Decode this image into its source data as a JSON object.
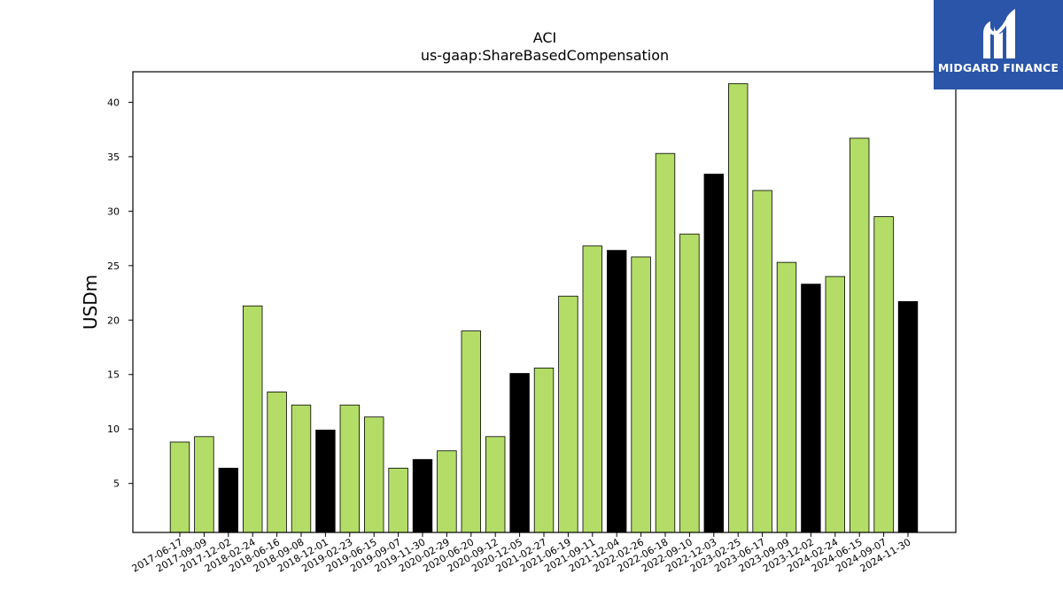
{
  "chart_data": {
    "type": "bar",
    "title": "ACI",
    "subtitle": "us-gaap:ShareBasedCompensation",
    "xlabel": "",
    "ylabel": "USDm",
    "ylim": [
      0.5,
      42.8
    ],
    "yticks": [
      5,
      10,
      15,
      20,
      25,
      30,
      35,
      40
    ],
    "grid": false,
    "colors": {
      "regular": "#b3dd67",
      "highlight": "#000000",
      "edge": "#000000"
    },
    "categories": [
      "2017-06-17",
      "2017-09-09",
      "2017-12-02",
      "2018-02-24",
      "2018-06-16",
      "2018-09-08",
      "2018-12-01",
      "2019-02-23",
      "2019-06-15",
      "2019-09-07",
      "2019-11-30",
      "2020-02-29",
      "2020-06-20",
      "2020-09-12",
      "2020-12-05",
      "2021-02-27",
      "2021-06-19",
      "2021-09-11",
      "2021-12-04",
      "2022-02-26",
      "2022-06-18",
      "2022-09-10",
      "2022-12-03",
      "2023-02-25",
      "2023-06-17",
      "2023-09-09",
      "2023-12-02",
      "2024-02-24",
      "2024-06-15",
      "2024-09-07",
      "2024-11-30"
    ],
    "values": [
      8.8,
      9.3,
      6.4,
      21.3,
      13.4,
      12.2,
      9.9,
      12.2,
      11.1,
      6.4,
      7.2,
      8.0,
      19.0,
      9.3,
      15.1,
      15.6,
      22.2,
      26.8,
      26.4,
      25.8,
      35.3,
      27.9,
      33.4,
      41.7,
      31.9,
      25.3,
      23.3,
      24.0,
      36.7,
      29.5,
      21.7
    ],
    "highlighted": [
      false,
      false,
      true,
      false,
      false,
      false,
      true,
      false,
      false,
      false,
      true,
      false,
      false,
      false,
      true,
      false,
      false,
      false,
      true,
      false,
      false,
      false,
      true,
      false,
      false,
      false,
      true,
      false,
      false,
      false,
      true
    ]
  },
  "logo": {
    "text": "MIDGARD FINANCE",
    "icon": "midgard-logo-icon",
    "background": "#2a55a8"
  }
}
